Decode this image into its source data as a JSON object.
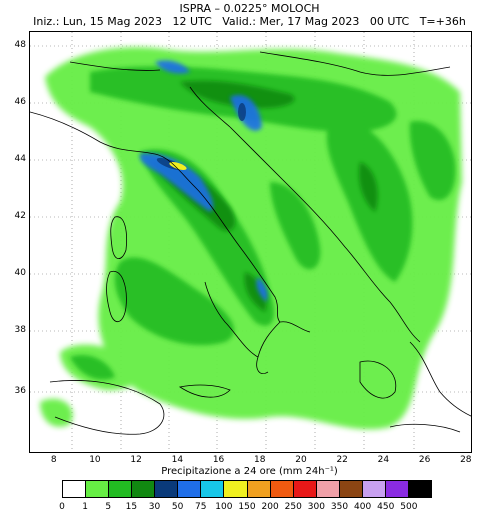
{
  "header": {
    "title_line1": "ISPRA – 0.0225° MOLOCH",
    "title_line2": "Iniz.: Lun, 15 Mag 2023   12 UTC   Valid.: Mer, 17 Mag 2023   00 UTC   T=+36h"
  },
  "axes": {
    "lat_labels": [
      "48",
      "46",
      "44",
      "42",
      "40",
      "38",
      "36"
    ],
    "lon_labels": [
      "8",
      "10",
      "12",
      "14",
      "16",
      "18",
      "20",
      "22",
      "24",
      "26",
      "28"
    ]
  },
  "colorbar": {
    "label": "Precipitazione a 24 ore (mm 24h⁻¹)",
    "thresholds": [
      "0",
      "1",
      "5",
      "15",
      "30",
      "50",
      "75",
      "100",
      "150",
      "200",
      "250",
      "300",
      "350",
      "400",
      "450",
      "500"
    ],
    "colors": [
      "#ffffff",
      "#66ee44",
      "#22bb22",
      "#118811",
      "#0a3a7a",
      "#1f6ee8",
      "#17c7e8",
      "#f0f020",
      "#f0a020",
      "#f05a10",
      "#e81818",
      "#f0a0a8",
      "#8b4513",
      "#c8a0f0",
      "#8a2be2",
      "#000000"
    ]
  }
}
